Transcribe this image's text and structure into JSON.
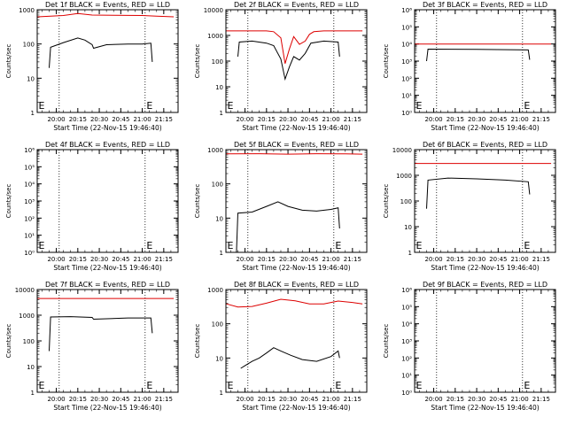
{
  "figure": {
    "start_time_label": "Start Time (22-Nov-15 19:46:40)",
    "ylabel": "Counts/sec",
    "x_ticks": [
      "20:00",
      "20:15",
      "20:30",
      "20:45",
      "21:00",
      "21:15"
    ],
    "colors": {
      "events": "#000000",
      "lld": "#dd0000",
      "vline": "#000000"
    }
  },
  "chart_data": [
    {
      "type": "line",
      "title": "Det 1f BLACK = Events, RED = LLD",
      "ylim": [
        1,
        1000
      ],
      "yscale": "log",
      "ytick_labels": [
        "1",
        "10",
        "100",
        "1000"
      ],
      "xlim": [
        "19:46:40",
        "21:25:00"
      ],
      "vlines": [
        "20:02:00",
        "21:02:00"
      ],
      "markers": [
        {
          "label": "E",
          "x": "19:47:00"
        },
        {
          "label": "E",
          "x": "21:03:00"
        }
      ],
      "series": [
        {
          "name": "LLD",
          "color": "#dd0000",
          "x": [
            "19:47:00",
            "20:05:00",
            "20:15:00",
            "20:25:00",
            "20:40:00",
            "21:00:00",
            "21:10:00",
            "21:22:00"
          ],
          "y": [
            620,
            680,
            780,
            700,
            690,
            680,
            650,
            620
          ]
        },
        {
          "name": "Events",
          "color": "#000000",
          "x": [
            "19:55:00",
            "19:56:00",
            "20:05:00",
            "20:15:00",
            "20:20:00",
            "20:25:00",
            "20:26:00",
            "20:35:00",
            "20:50:00",
            "21:00:00",
            "21:06:00",
            "21:07:00"
          ],
          "y": [
            20,
            80,
            110,
            150,
            130,
            95,
            75,
            95,
            100,
            100,
            105,
            30
          ]
        }
      ]
    },
    {
      "type": "line",
      "title": "Det 2f BLACK = Events, RED = LLD",
      "ylim": [
        1,
        10000
      ],
      "yscale": "log",
      "ytick_labels": [
        "1",
        "10",
        "100",
        "1000",
        "10000"
      ],
      "xlim": [
        "19:46:40",
        "21:25:00"
      ],
      "vlines": [
        "20:02:00",
        "21:02:00"
      ],
      "markers": [
        {
          "label": "E",
          "x": "19:47:00"
        }
      ],
      "series": [
        {
          "name": "LLD",
          "color": "#dd0000",
          "x": [
            "19:47:00",
            "20:15:00",
            "20:20:00",
            "20:25:00",
            "20:28:00",
            "20:31:00",
            "20:34:00",
            "20:38:00",
            "20:42:00",
            "20:45:00",
            "20:48:00",
            "20:55:00",
            "21:22:00"
          ],
          "y": [
            1500,
            1500,
            1400,
            800,
            80,
            300,
            900,
            450,
            600,
            1100,
            1400,
            1500,
            1500
          ]
        },
        {
          "name": "Events",
          "color": "#000000",
          "x": [
            "19:55:00",
            "19:56:00",
            "20:05:00",
            "20:15:00",
            "20:20:00",
            "20:25:00",
            "20:28:00",
            "20:31:00",
            "20:34:00",
            "20:38:00",
            "20:42:00",
            "20:46:00",
            "20:55:00",
            "21:05:00",
            "21:06:00"
          ],
          "y": [
            150,
            550,
            600,
            500,
            400,
            120,
            20,
            60,
            150,
            110,
            200,
            500,
            600,
            550,
            150
          ]
        }
      ]
    },
    {
      "type": "line",
      "title": "Det 3f BLACK = Events, RED = LLD",
      "ylim": [
        1,
        1000000
      ],
      "yscale": "log",
      "ytick_labels": [
        "10⁰",
        "10¹",
        "10²",
        "10³",
        "10⁴",
        "10⁵",
        "10⁶"
      ],
      "xlim": [
        "19:46:40",
        "21:25:00"
      ],
      "vlines": [
        "20:02:00",
        "21:02:00"
      ],
      "markers": [
        {
          "label": "E",
          "x": "19:47:00"
        },
        {
          "label": "E",
          "x": "21:03:00"
        }
      ],
      "series": [
        {
          "name": "LLD",
          "color": "#dd0000",
          "x": [
            "19:47:00",
            "21:22:00"
          ],
          "y": [
            10000,
            10000
          ]
        },
        {
          "name": "Events",
          "color": "#000000",
          "x": [
            "19:55:00",
            "19:56:00",
            "20:30:00",
            "21:06:00",
            "21:07:00"
          ],
          "y": [
            1000,
            5000,
            4800,
            4500,
            1200
          ]
        }
      ]
    },
    {
      "type": "line",
      "title": "Det 4f BLACK = Events, RED = LLD",
      "ylim": [
        1,
        1000000
      ],
      "yscale": "log",
      "ytick_labels": [
        "10⁰",
        "10¹",
        "10²",
        "10³",
        "10⁴",
        "10⁵",
        "10⁶"
      ],
      "xlim": [
        "19:46:40",
        "21:25:00"
      ],
      "vlines": [
        "20:02:00",
        "21:02:00"
      ],
      "markers": [
        {
          "label": "E",
          "x": "19:47:00"
        },
        {
          "label": "E",
          "x": "21:03:00"
        }
      ],
      "series": []
    },
    {
      "type": "line",
      "title": "Det 5f BLACK = Events, RED = LLD",
      "ylim": [
        1,
        1000
      ],
      "yscale": "log",
      "ytick_labels": [
        "1",
        "10",
        "100",
        "1000"
      ],
      "xlim": [
        "19:46:40",
        "21:25:00"
      ],
      "vlines": [
        "20:02:00",
        "21:02:00"
      ],
      "markers": [
        {
          "label": "E",
          "x": "19:47:00"
        },
        {
          "label": "E",
          "x": "21:03:00"
        }
      ],
      "series": [
        {
          "name": "LLD",
          "color": "#dd0000",
          "x": [
            "19:47:00",
            "20:10:00",
            "20:30:00",
            "20:50:00",
            "21:10:00",
            "21:22:00"
          ],
          "y": [
            750,
            760,
            740,
            760,
            750,
            740
          ]
        },
        {
          "name": "Events",
          "color": "#000000",
          "x": [
            "19:54:00",
            "19:55:00",
            "20:05:00",
            "20:15:00",
            "20:23:00",
            "20:30:00",
            "20:40:00",
            "20:50:00",
            "21:00:00",
            "21:05:00",
            "21:06:00"
          ],
          "y": [
            1,
            14,
            15,
            22,
            30,
            22,
            17,
            16,
            18,
            20,
            5
          ]
        }
      ]
    },
    {
      "type": "line",
      "title": "Det 6f BLACK = Events, RED = LLD",
      "ylim": [
        1,
        10000
      ],
      "yscale": "log",
      "ytick_labels": [
        "1",
        "10",
        "100",
        "1000",
        "10000"
      ],
      "xlim": [
        "19:46:40",
        "21:25:00"
      ],
      "vlines": [
        "20:02:00",
        "21:02:00"
      ],
      "markers": [
        {
          "label": "E",
          "x": "19:47:00"
        },
        {
          "label": "E",
          "x": "21:03:00"
        }
      ],
      "series": [
        {
          "name": "LLD",
          "color": "#dd0000",
          "x": [
            "19:47:00",
            "21:22:00"
          ],
          "y": [
            2900,
            2900
          ]
        },
        {
          "name": "Events",
          "color": "#000000",
          "x": [
            "19:55:00",
            "19:56:00",
            "20:10:00",
            "20:30:00",
            "20:50:00",
            "21:06:00",
            "21:07:00"
          ],
          "y": [
            50,
            650,
            780,
            730,
            650,
            560,
            180
          ]
        }
      ]
    },
    {
      "type": "line",
      "title": "Det 7f BLACK = Events, RED = LLD",
      "ylim": [
        1,
        10000
      ],
      "yscale": "log",
      "ytick_labels": [
        "1",
        "10",
        "100",
        "1000",
        "10000"
      ],
      "xlim": [
        "19:46:40",
        "21:25:00"
      ],
      "vlines": [
        "20:02:00",
        "21:02:00"
      ],
      "markers": [
        {
          "label": "E",
          "x": "19:47:00"
        },
        {
          "label": "E",
          "x": "21:03:00"
        }
      ],
      "series": [
        {
          "name": "LLD",
          "color": "#dd0000",
          "x": [
            "19:47:00",
            "21:22:00"
          ],
          "y": [
            4500,
            4500
          ]
        },
        {
          "name": "Events",
          "color": "#000000",
          "x": [
            "19:55:00",
            "19:56:00",
            "20:10:00",
            "20:25:00",
            "20:26:00",
            "20:50:00",
            "21:06:00",
            "21:07:00"
          ],
          "y": [
            40,
            850,
            880,
            820,
            700,
            780,
            780,
            200
          ]
        }
      ]
    },
    {
      "type": "line",
      "title": "Det 8f BLACK = Events, RED = LLD",
      "ylim": [
        1,
        1000
      ],
      "yscale": "log",
      "ytick_labels": [
        "1",
        "10",
        "100",
        "1000"
      ],
      "xlim": [
        "19:46:40",
        "21:25:00"
      ],
      "vlines": [
        "20:02:00",
        "21:02:00"
      ],
      "markers": [
        {
          "label": "E",
          "x": "19:47:00"
        },
        {
          "label": "E",
          "x": "21:03:00"
        }
      ],
      "series": [
        {
          "name": "LLD",
          "color": "#dd0000",
          "x": [
            "19:47:00",
            "19:55:00",
            "20:05:00",
            "20:15:00",
            "20:25:00",
            "20:35:00",
            "20:45:00",
            "20:55:00",
            "21:05:00",
            "21:15:00",
            "21:22:00"
          ],
          "y": [
            380,
            310,
            320,
            400,
            520,
            470,
            380,
            380,
            460,
            420,
            380
          ]
        },
        {
          "name": "Events",
          "color": "#000000",
          "x": [
            "19:57:00",
            "20:00:00",
            "20:05:00",
            "20:10:00",
            "20:15:00",
            "20:20:00",
            "20:25:00",
            "20:32:00",
            "20:40:00",
            "20:50:00",
            "21:00:00",
            "21:05:00",
            "21:06:00"
          ],
          "y": [
            5,
            6,
            8,
            10,
            14,
            20,
            16,
            12,
            9,
            8,
            11,
            16,
            10
          ]
        }
      ]
    },
    {
      "type": "line",
      "title": "Det 9f BLACK = Events, RED = LLD",
      "ylim": [
        1,
        1000000
      ],
      "yscale": "log",
      "ytick_labels": [
        "10⁰",
        "10¹",
        "10²",
        "10³",
        "10⁴",
        "10⁵",
        "10⁶"
      ],
      "xlim": [
        "19:46:40",
        "21:25:00"
      ],
      "vlines": [
        "20:02:00",
        "21:02:00"
      ],
      "markers": [
        {
          "label": "E",
          "x": "19:47:00"
        },
        {
          "label": "E",
          "x": "21:03:00"
        }
      ],
      "series": []
    }
  ]
}
